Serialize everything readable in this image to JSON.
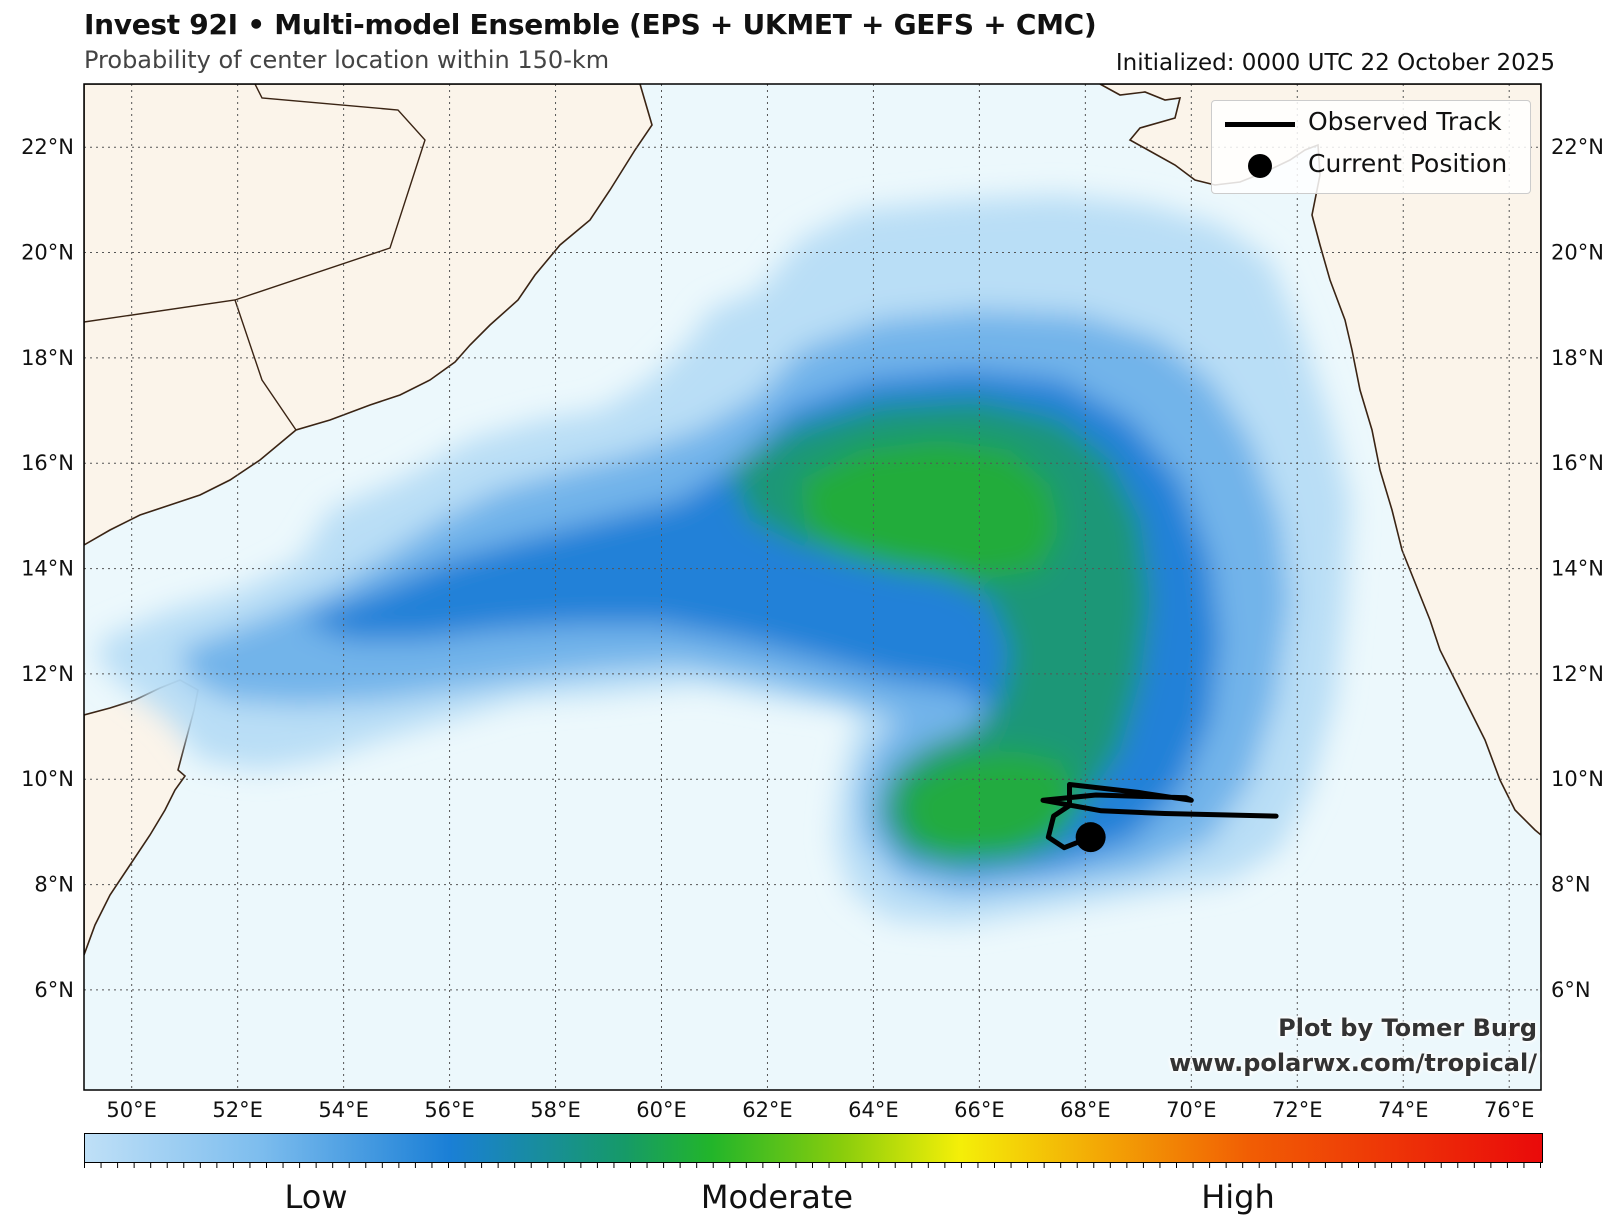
{
  "header": {
    "title": "Invest 92I • Multi-model Ensemble (EPS + UKMET + GEFS + CMC)",
    "subtitle": "Probability of center location within 150-km",
    "initialized": "Initialized: 0000 UTC 22 October 2025"
  },
  "map": {
    "lon_range": [
      49.1,
      76.6
    ],
    "lat_range": [
      4.1,
      23.2
    ],
    "lon_ticks": [
      {
        "value": 50,
        "label": "50°E"
      },
      {
        "value": 52,
        "label": "52°E"
      },
      {
        "value": 54,
        "label": "54°E"
      },
      {
        "value": 56,
        "label": "56°E"
      },
      {
        "value": 58,
        "label": "58°E"
      },
      {
        "value": 60,
        "label": "60°E"
      },
      {
        "value": 62,
        "label": "62°E"
      },
      {
        "value": 64,
        "label": "64°E"
      },
      {
        "value": 66,
        "label": "66°E"
      },
      {
        "value": 68,
        "label": "68°E"
      },
      {
        "value": 70,
        "label": "70°E"
      },
      {
        "value": 72,
        "label": "72°E"
      },
      {
        "value": 74,
        "label": "74°E"
      },
      {
        "value": 76,
        "label": "76°E"
      }
    ],
    "lat_ticks": [
      {
        "value": 6,
        "label": "6°N"
      },
      {
        "value": 8,
        "label": "8°N"
      },
      {
        "value": 10,
        "label": "10°N"
      },
      {
        "value": 12,
        "label": "12°N"
      },
      {
        "value": 14,
        "label": "14°N"
      },
      {
        "value": 16,
        "label": "16°N"
      },
      {
        "value": 18,
        "label": "18°N"
      },
      {
        "value": 20,
        "label": "20°N"
      },
      {
        "value": 22,
        "label": "22°N"
      }
    ],
    "gridlines": true,
    "colors": {
      "ocean": "#ecf8fc",
      "land": "#fbf4ea",
      "coast": "#3a2414",
      "grid": "#555555"
    },
    "observed_track": [
      [
        71.6,
        9.3
      ],
      [
        69.5,
        9.35
      ],
      [
        68.3,
        9.4
      ],
      [
        67.2,
        9.6
      ],
      [
        68.2,
        9.7
      ],
      [
        69.9,
        9.65
      ],
      [
        70.0,
        9.6
      ],
      [
        69.0,
        9.75
      ],
      [
        67.7,
        9.9
      ],
      [
        67.7,
        9.5
      ],
      [
        67.4,
        9.3
      ],
      [
        67.3,
        8.9
      ],
      [
        67.6,
        8.7
      ],
      [
        68.1,
        8.9
      ]
    ],
    "current_position": [
      68.1,
      8.9
    ]
  },
  "legend": {
    "items": [
      {
        "kind": "line",
        "label": "Observed Track"
      },
      {
        "kind": "dot",
        "label": "Current Position"
      }
    ],
    "placement": "top-right"
  },
  "credit": {
    "line1": "Plot by Tomer Burg",
    "line2": "www.polarwx.com/tropical/"
  },
  "colorbar": {
    "low": "Low",
    "moderate": "Moderate",
    "high": "High"
  }
}
